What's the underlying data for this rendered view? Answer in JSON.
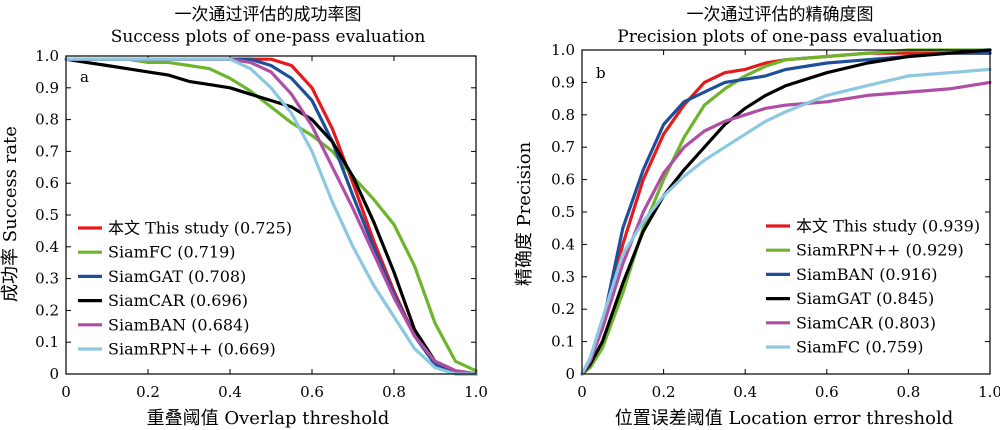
{
  "chart_data": [
    {
      "type": "line",
      "title_cn": "一次通过评估的成功率图",
      "title": "Success plots of one-pass evaluation",
      "xlabel": "重叠阈值 Overlap threshold",
      "ylabel": "成功率 Success rate",
      "panel_label": "a",
      "xlim": [
        0,
        1
      ],
      "ylim": [
        0,
        1
      ],
      "x_ticks": [
        "0",
        "0.2",
        "0.4",
        "0.6",
        "0.8",
        "1.0"
      ],
      "y_ticks": [
        "0",
        "0.1",
        "0.2",
        "0.3",
        "0.4",
        "0.5",
        "0.6",
        "0.7",
        "0.8",
        "0.9",
        "1.0"
      ],
      "legend_position": "bottom-left",
      "x": [
        0,
        0.05,
        0.1,
        0.15,
        0.2,
        0.25,
        0.3,
        0.35,
        0.4,
        0.45,
        0.5,
        0.55,
        0.6,
        0.65,
        0.7,
        0.75,
        0.8,
        0.85,
        0.9,
        0.95,
        1.0
      ],
      "series": [
        {
          "name": "本文 This study (0.725)",
          "color": "#e41a1c",
          "values": [
            0.99,
            0.99,
            0.99,
            0.99,
            0.99,
            0.99,
            0.99,
            0.99,
            0.99,
            0.99,
            0.99,
            0.97,
            0.9,
            0.77,
            0.6,
            0.42,
            0.26,
            0.12,
            0.04,
            0.01,
            0.0
          ]
        },
        {
          "name": "SiamFC (0.719)",
          "color": "#6cb52d",
          "values": [
            0.99,
            0.99,
            0.99,
            0.99,
            0.98,
            0.98,
            0.97,
            0.96,
            0.93,
            0.89,
            0.84,
            0.79,
            0.75,
            0.7,
            0.62,
            0.55,
            0.47,
            0.34,
            0.16,
            0.04,
            0.01
          ]
        },
        {
          "name": "SiamGAT (0.708)",
          "color": "#1f4e9a",
          "values": [
            0.99,
            0.99,
            0.99,
            0.99,
            0.99,
            0.99,
            0.99,
            0.99,
            0.99,
            0.99,
            0.97,
            0.93,
            0.86,
            0.73,
            0.56,
            0.4,
            0.25,
            0.12,
            0.03,
            0.0,
            0.0
          ]
        },
        {
          "name": "SiamCAR (0.696)",
          "color": "#000000",
          "values": [
            0.99,
            0.98,
            0.97,
            0.96,
            0.95,
            0.94,
            0.92,
            0.91,
            0.9,
            0.88,
            0.86,
            0.84,
            0.8,
            0.73,
            0.62,
            0.48,
            0.32,
            0.14,
            0.04,
            0.01,
            0.0
          ]
        },
        {
          "name": "SiamBAN (0.684)",
          "color": "#b04da5",
          "values": [
            0.99,
            0.99,
            0.99,
            0.99,
            0.99,
            0.99,
            0.99,
            0.99,
            0.99,
            0.98,
            0.95,
            0.88,
            0.78,
            0.65,
            0.52,
            0.38,
            0.24,
            0.12,
            0.04,
            0.01,
            0.0
          ]
        },
        {
          "name": "SiamRPN++ (0.669)",
          "color": "#8cc8df",
          "values": [
            0.99,
            0.99,
            0.99,
            0.99,
            0.99,
            0.99,
            0.99,
            0.99,
            0.99,
            0.96,
            0.9,
            0.82,
            0.7,
            0.54,
            0.4,
            0.28,
            0.18,
            0.08,
            0.02,
            0.0,
            0.0
          ]
        }
      ]
    },
    {
      "type": "line",
      "title_cn": "一次通过评估的精确度图",
      "title": "Precision plots of one-pass evaluation",
      "xlabel": "位置误差阈值 Location error threshold",
      "ylabel": "精确度 Precision",
      "panel_label": "b",
      "xlim": [
        0,
        1
      ],
      "ylim": [
        0,
        1
      ],
      "x_ticks": [
        "0",
        "0.2",
        "0.4",
        "0.6",
        "0.8",
        "1.0"
      ],
      "y_ticks": [
        "0",
        "0.1",
        "0.2",
        "0.3",
        "0.4",
        "0.5",
        "0.6",
        "0.7",
        "0.8",
        "0.9",
        "1.0"
      ],
      "legend_position": "bottom-right",
      "x": [
        0,
        0.02,
        0.05,
        0.1,
        0.15,
        0.2,
        0.25,
        0.3,
        0.35,
        0.4,
        0.45,
        0.5,
        0.6,
        0.7,
        0.8,
        0.9,
        1.0
      ],
      "series": [
        {
          "name": "本文 This study (0.939)",
          "color": "#e41a1c",
          "values": [
            0.0,
            0.04,
            0.15,
            0.4,
            0.6,
            0.74,
            0.83,
            0.9,
            0.93,
            0.94,
            0.96,
            0.97,
            0.98,
            0.99,
            0.99,
            0.99,
            0.99
          ]
        },
        {
          "name": "SiamRPN++ (0.929)",
          "color": "#6cb52d",
          "values": [
            0.0,
            0.02,
            0.08,
            0.25,
            0.45,
            0.6,
            0.73,
            0.83,
            0.88,
            0.92,
            0.95,
            0.97,
            0.98,
            0.99,
            1.0,
            1.0,
            1.0
          ]
        },
        {
          "name": "SiamBAN (0.916)",
          "color": "#1f4e9a",
          "values": [
            0.0,
            0.04,
            0.15,
            0.45,
            0.63,
            0.77,
            0.84,
            0.87,
            0.9,
            0.91,
            0.92,
            0.94,
            0.96,
            0.97,
            0.98,
            0.99,
            0.99
          ]
        },
        {
          "name": "SiamGAT (0.845)",
          "color": "#000000",
          "values": [
            0.0,
            0.03,
            0.1,
            0.28,
            0.44,
            0.55,
            0.63,
            0.7,
            0.77,
            0.82,
            0.86,
            0.89,
            0.93,
            0.96,
            0.98,
            0.99,
            1.0
          ]
        },
        {
          "name": "SiamCAR (0.803)",
          "color": "#b04da5",
          "values": [
            0.0,
            0.04,
            0.14,
            0.34,
            0.5,
            0.62,
            0.7,
            0.75,
            0.78,
            0.8,
            0.82,
            0.83,
            0.84,
            0.86,
            0.87,
            0.88,
            0.9
          ]
        },
        {
          "name": "SiamFC (0.759)",
          "color": "#8cc8df",
          "values": [
            0.0,
            0.05,
            0.17,
            0.37,
            0.47,
            0.55,
            0.61,
            0.66,
            0.7,
            0.74,
            0.78,
            0.81,
            0.86,
            0.89,
            0.92,
            0.93,
            0.94
          ]
        }
      ]
    }
  ]
}
